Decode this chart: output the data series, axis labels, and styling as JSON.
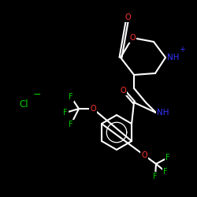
{
  "background": "#000000",
  "bond_color": "#ffffff",
  "bond_width": 1.5,
  "atom_colors": {
    "O": "#ff3333",
    "N": "#3333ff",
    "F": "#00cc00",
    "Cl": "#00cc00",
    "C": "#ffffff",
    "H": "#ffffff"
  },
  "font_size_atom": 7.5,
  "figsize": [
    2.5,
    2.5
  ],
  "dpi": 100
}
